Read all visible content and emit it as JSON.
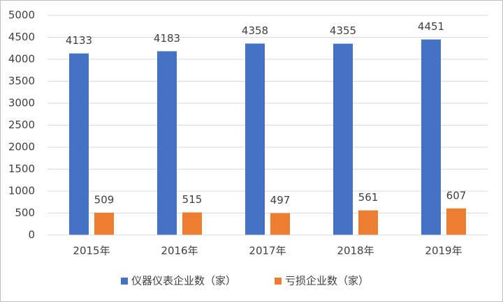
{
  "chart_data": {
    "type": "bar",
    "categories": [
      "2015年",
      "2016年",
      "2017年",
      "2018年",
      "2019年"
    ],
    "series": [
      {
        "name": "仪器仪表企业数（家）",
        "color": "#4472c4",
        "values": [
          4133,
          4183,
          4358,
          4355,
          4451
        ]
      },
      {
        "name": "亏损企业数（家）",
        "color": "#ed7d31",
        "values": [
          509,
          515,
          497,
          561,
          607
        ]
      }
    ],
    "ylim": [
      0,
      5000
    ],
    "yticks": [
      0,
      500,
      1000,
      1500,
      2000,
      2500,
      3000,
      3500,
      4000,
      4500,
      5000
    ],
    "grid": true,
    "legend": "bottom"
  }
}
